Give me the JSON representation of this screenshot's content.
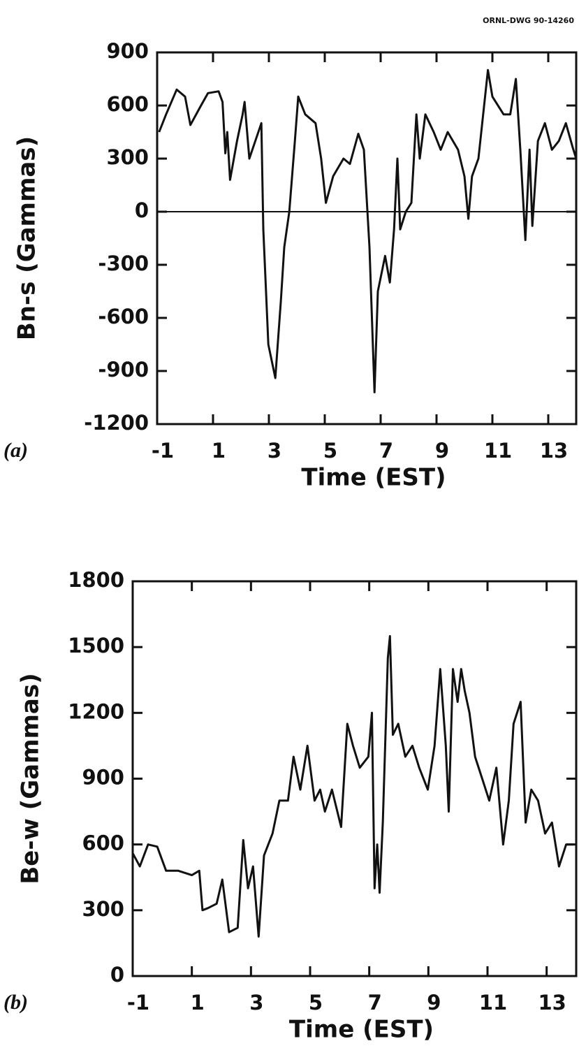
{
  "chart_data": [
    {
      "type": "line",
      "annotation": "ORNL-DWG 90-14260",
      "panel_label": "(a)",
      "xlabel": "Time  (EST)",
      "ylabel": "Bn-s  (Gammas)",
      "color": "#111111",
      "zero_line": true,
      "xlim": [
        -1,
        14
      ],
      "xticks": [
        -1,
        1,
        3,
        5,
        7,
        9,
        11,
        13
      ],
      "ylim": [
        -1200,
        900
      ],
      "yticks": [
        900,
        600,
        300,
        0,
        -300,
        -600,
        -900,
        -1200
      ],
      "x": [
        -0.93,
        -0.68,
        -0.3,
        0,
        0.19,
        0.57,
        0.82,
        1.2,
        1.34,
        1.44,
        1.51,
        1.61,
        1.86,
        2.06,
        2.13,
        2.3,
        2.73,
        2.8,
        2.98,
        3.23,
        3.43,
        3.55,
        3.73,
        3.93,
        4.05,
        4.3,
        4.67,
        4.87,
        5.04,
        5.3,
        5.67,
        5.9,
        6.2,
        6.4,
        6.6,
        6.78,
        6.9,
        7.16,
        7.33,
        7.48,
        7.6,
        7.7,
        7.9,
        8.1,
        8.28,
        8.4,
        8.6,
        8.9,
        9.15,
        9.4,
        9.77,
        10.0,
        10.14,
        10.27,
        10.5,
        10.84,
        11.0,
        11.4,
        11.64,
        11.84,
        12.0,
        12.18,
        12.33,
        12.43,
        12.63,
        12.88,
        13.13,
        13.38,
        13.63,
        13.88,
        14.0
      ],
      "values": [
        450,
        550,
        690,
        650,
        490,
        600,
        670,
        680,
        620,
        330,
        450,
        180,
        400,
        550,
        620,
        300,
        500,
        -100,
        -750,
        -940,
        -500,
        -200,
        0,
        400,
        650,
        550,
        500,
        300,
        50,
        200,
        300,
        270,
        440,
        350,
        -200,
        -1020,
        -450,
        -250,
        -400,
        -100,
        300,
        -100,
        0,
        50,
        550,
        300,
        550,
        450,
        350,
        450,
        350,
        200,
        -40,
        200,
        300,
        800,
        650,
        550,
        550,
        750,
        350,
        -160,
        350,
        -80,
        400,
        500,
        350,
        400,
        500,
        360,
        300
      ]
    },
    {
      "type": "line",
      "panel_label": "(b)",
      "xlabel": "Time  (EST)",
      "ylabel": "Be-w  (Gammas)",
      "color": "#111111",
      "zero_line": false,
      "xlim": [
        -1,
        14
      ],
      "xticks": [
        -1,
        1,
        3,
        5,
        7,
        9,
        11,
        13
      ],
      "ylim": [
        0,
        1800
      ],
      "yticks": [
        1800,
        1500,
        1200,
        900,
        600,
        300,
        0
      ],
      "x": [
        -1,
        -0.76,
        -0.48,
        -0.17,
        0.13,
        0.54,
        1.0,
        1.25,
        1.36,
        1.55,
        1.84,
        2.03,
        2.26,
        2.55,
        2.74,
        2.9,
        3.07,
        3.26,
        3.44,
        3.73,
        3.96,
        4.25,
        4.44,
        4.67,
        4.91,
        5.15,
        5.34,
        5.5,
        5.74,
        6.05,
        6.26,
        6.45,
        6.68,
        6.97,
        7.09,
        7.18,
        7.27,
        7.35,
        7.46,
        7.63,
        7.7,
        7.8,
        7.98,
        8.22,
        8.46,
        8.69,
        8.98,
        9.21,
        9.4,
        9.59,
        9.69,
        9.83,
        9.99,
        10.11,
        10.23,
        10.39,
        10.58,
        10.82,
        11.06,
        11.3,
        11.53,
        11.72,
        11.88,
        12.12,
        12.29,
        12.48,
        12.71,
        12.95,
        13.18,
        13.42,
        13.66,
        13.9
      ],
      "values": [
        560,
        500,
        600,
        590,
        480,
        480,
        460,
        480,
        300,
        310,
        330,
        440,
        200,
        220,
        620,
        400,
        500,
        180,
        550,
        650,
        800,
        800,
        1000,
        850,
        1050,
        800,
        850,
        750,
        850,
        680,
        1150,
        1050,
        950,
        1000,
        1200,
        400,
        600,
        380,
        700,
        1450,
        1550,
        1100,
        1150,
        1000,
        1050,
        950,
        850,
        1050,
        1400,
        1050,
        750,
        1400,
        1250,
        1400,
        1300,
        1200,
        1000,
        900,
        800,
        950,
        600,
        800,
        1150,
        1250,
        700,
        850,
        800,
        650,
        700,
        500,
        600,
        600
      ]
    }
  ]
}
